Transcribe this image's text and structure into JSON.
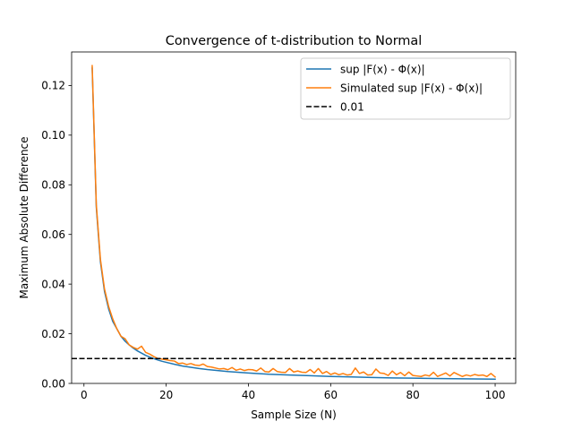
{
  "chart_data": {
    "type": "line",
    "title": "Convergence of t-distribution to Normal",
    "xlabel": "Sample Size (N)",
    "ylabel": "Maximum Absolute Difference",
    "xlim": [
      -3,
      105
    ],
    "ylim": [
      0.0,
      0.1335
    ],
    "xticks": [
      0,
      20,
      40,
      60,
      80,
      100
    ],
    "yticks": [
      0.0,
      0.02,
      0.04,
      0.06,
      0.08,
      0.1,
      0.12
    ],
    "xtick_labels": [
      "0",
      "20",
      "40",
      "60",
      "80",
      "100"
    ],
    "ytick_labels": [
      "0.00",
      "0.02",
      "0.04",
      "0.06",
      "0.08",
      "0.10",
      "0.12"
    ],
    "grid": false,
    "legend": "top-right",
    "series": [
      {
        "name": "sup |F(x) - Φ(x)|",
        "color": "#1f77b4",
        "x": [
          2,
          3,
          4,
          5,
          6,
          7,
          8,
          9,
          10,
          11,
          12,
          13,
          14,
          15,
          16,
          17,
          18,
          19,
          20,
          22,
          24,
          26,
          28,
          30,
          35,
          40,
          45,
          50,
          55,
          60,
          65,
          70,
          75,
          80,
          85,
          90,
          95,
          100
        ],
        "y": [
          0.127,
          0.071,
          0.049,
          0.037,
          0.03,
          0.025,
          0.022,
          0.019,
          0.017,
          0.0155,
          0.0142,
          0.0131,
          0.0122,
          0.0113,
          0.0106,
          0.01,
          0.0094,
          0.0089,
          0.0085,
          0.0077,
          0.007,
          0.0065,
          0.006,
          0.0056,
          0.0048,
          0.0042,
          0.0037,
          0.0034,
          0.0031,
          0.0028,
          0.0026,
          0.0024,
          0.0022,
          0.0021,
          0.002,
          0.0019,
          0.0018,
          0.0017
        ]
      },
      {
        "name": "Simulated sup |F(x) - Φ(x)|",
        "color": "#ff7f0e",
        "x": [
          2,
          3,
          4,
          5,
          6,
          7,
          8,
          9,
          10,
          11,
          12,
          13,
          14,
          15,
          16,
          17,
          18,
          19,
          20,
          21,
          22,
          23,
          24,
          25,
          26,
          27,
          28,
          29,
          30,
          31,
          32,
          33,
          34,
          35,
          36,
          37,
          38,
          39,
          40,
          41,
          42,
          43,
          44,
          45,
          46,
          47,
          48,
          49,
          50,
          51,
          52,
          53,
          54,
          55,
          56,
          57,
          58,
          59,
          60,
          61,
          62,
          63,
          64,
          65,
          66,
          67,
          68,
          69,
          70,
          71,
          72,
          73,
          74,
          75,
          76,
          77,
          78,
          79,
          80,
          81,
          82,
          83,
          84,
          85,
          86,
          87,
          88,
          89,
          90,
          91,
          92,
          93,
          94,
          95,
          96,
          97,
          98,
          99,
          100
        ],
        "y": [
          0.128,
          0.072,
          0.05,
          0.038,
          0.031,
          0.026,
          0.022,
          0.019,
          0.018,
          0.0155,
          0.0145,
          0.0138,
          0.015,
          0.0125,
          0.0118,
          0.0108,
          0.01,
          0.0098,
          0.0095,
          0.0092,
          0.009,
          0.008,
          0.0082,
          0.0076,
          0.008,
          0.0074,
          0.0072,
          0.0078,
          0.0068,
          0.0066,
          0.0062,
          0.0058,
          0.006,
          0.0055,
          0.0064,
          0.0053,
          0.0058,
          0.0052,
          0.0056,
          0.0055,
          0.005,
          0.0062,
          0.0048,
          0.0046,
          0.006,
          0.0048,
          0.0045,
          0.0044,
          0.006,
          0.0046,
          0.005,
          0.0045,
          0.0044,
          0.0056,
          0.0042,
          0.006,
          0.004,
          0.0048,
          0.0036,
          0.0042,
          0.0035,
          0.004,
          0.0034,
          0.0036,
          0.0062,
          0.004,
          0.0046,
          0.0034,
          0.0035,
          0.0058,
          0.0042,
          0.004,
          0.0032,
          0.005,
          0.0035,
          0.0044,
          0.0031,
          0.0046,
          0.0032,
          0.003,
          0.0028,
          0.0034,
          0.003,
          0.0045,
          0.0028,
          0.0035,
          0.0042,
          0.003,
          0.0044,
          0.0036,
          0.0028,
          0.0034,
          0.003,
          0.0036,
          0.0032,
          0.0034,
          0.0028,
          0.004,
          0.0026
        ]
      },
      {
        "name": "0.01",
        "color": "#000000",
        "style": "dashed",
        "hline": 0.01
      }
    ]
  }
}
